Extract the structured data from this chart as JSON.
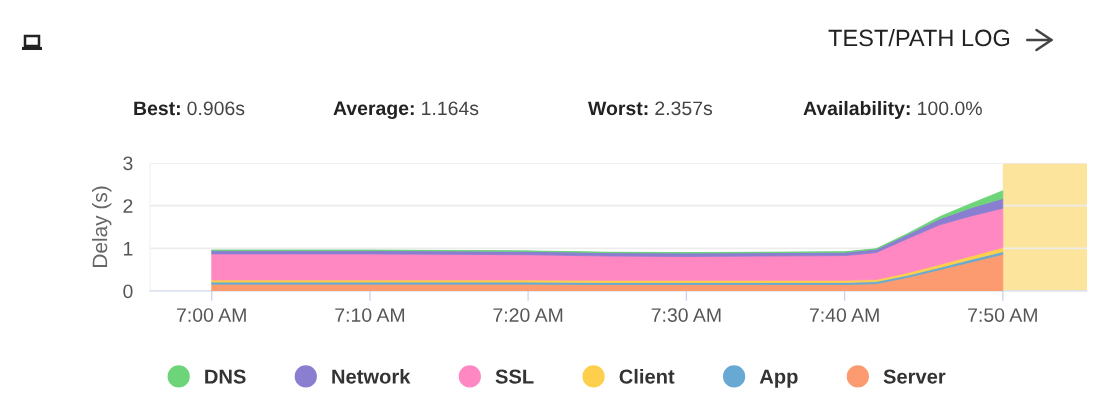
{
  "chart_data": {
    "type": "area",
    "stacked": true,
    "x": [
      7.0,
      7.0833,
      7.1667,
      7.25,
      7.3333,
      7.4167,
      7.5,
      7.5833,
      7.6667,
      7.7,
      7.7333,
      7.7667,
      7.8,
      7.8333
    ],
    "series": [
      {
        "name": "Server",
        "color": "#fc9a70",
        "values": [
          0.16,
          0.16,
          0.16,
          0.16,
          0.16,
          0.15,
          0.15,
          0.15,
          0.15,
          0.17,
          0.32,
          0.5,
          0.68,
          0.86
        ]
      },
      {
        "name": "App",
        "color": "#67a9d3",
        "values": [
          0.05,
          0.05,
          0.05,
          0.05,
          0.05,
          0.05,
          0.05,
          0.05,
          0.05,
          0.05,
          0.05,
          0.05,
          0.06,
          0.06
        ]
      },
      {
        "name": "Client",
        "color": "#fdcf4c",
        "values": [
          0.05,
          0.05,
          0.05,
          0.05,
          0.05,
          0.05,
          0.05,
          0.05,
          0.05,
          0.05,
          0.06,
          0.07,
          0.08,
          0.1
        ]
      },
      {
        "name": "SSL",
        "color": "#ff88c3",
        "values": [
          0.61,
          0.61,
          0.61,
          0.6,
          0.59,
          0.57,
          0.56,
          0.57,
          0.58,
          0.63,
          0.8,
          0.93,
          0.94,
          0.92
        ]
      },
      {
        "name": "Network",
        "color": "#8a7ed0",
        "values": [
          0.08,
          0.08,
          0.08,
          0.08,
          0.08,
          0.08,
          0.08,
          0.08,
          0.08,
          0.08,
          0.1,
          0.14,
          0.19,
          0.23
        ]
      },
      {
        "name": "DNS",
        "color": "#6dd47a",
        "values": [
          0.01,
          0.01,
          0.01,
          0.01,
          0.01,
          0.01,
          0.01,
          0.01,
          0.01,
          0.01,
          0.02,
          0.05,
          0.1,
          0.18
        ]
      }
    ],
    "ylabel": "Delay (s)",
    "xlim": [
      6.935,
      7.922
    ],
    "xticks": [
      {
        "value": 7.0,
        "label": "7:00 AM"
      },
      {
        "value": 7.1667,
        "label": "7:10 AM"
      },
      {
        "value": 7.3333,
        "label": "7:20 AM"
      },
      {
        "value": 7.5,
        "label": "7:30 AM"
      },
      {
        "value": 7.6667,
        "label": "7:40 AM"
      },
      {
        "value": 7.8333,
        "label": "7:50 AM"
      }
    ],
    "ylim": [
      0,
      3
    ],
    "yticks": [
      0,
      1,
      2,
      3
    ],
    "bands": [
      {
        "axis": "x",
        "from": 7.8333,
        "to": 7.922,
        "color": "#fde49c"
      }
    ],
    "grid": "y",
    "legend": "bottom",
    "annotations": [
      "TEST/PATH LOG",
      "Best: 0.906s",
      "Average: 1.164s",
      "Worst: 2.357s",
      "Availability: 100.0%"
    ]
  }
}
